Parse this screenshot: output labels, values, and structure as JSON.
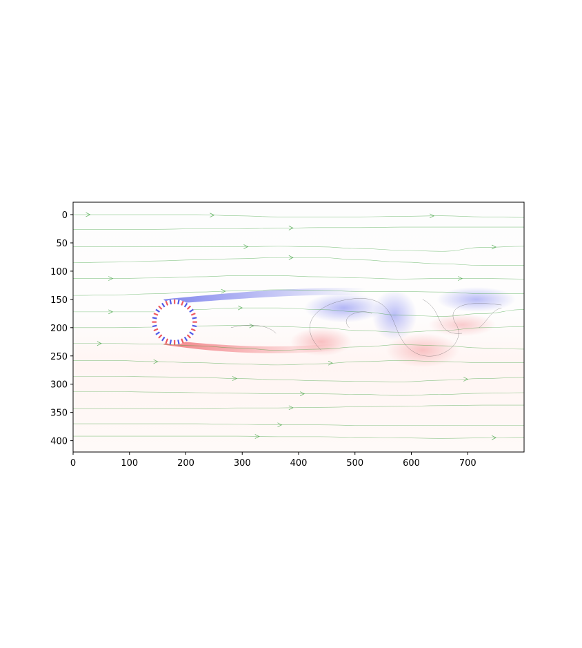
{
  "chart_data": {
    "type": "heatmap",
    "title": "",
    "xlabel": "",
    "ylabel": "",
    "xlim": [
      0,
      800
    ],
    "ylim": [
      420,
      -22
    ],
    "y_axis_inverted": true,
    "x_ticks": [
      0,
      100,
      200,
      300,
      400,
      500,
      600,
      700
    ],
    "y_ticks": [
      0,
      50,
      100,
      150,
      200,
      250,
      300,
      350,
      400
    ],
    "grid": false,
    "colormap": {
      "positive": "#e8202a",
      "negative": "#1a24e0",
      "zero": "#ffffff"
    },
    "obstacle": {
      "shape": "circle",
      "cx": 180,
      "cy": 190,
      "r": 40
    },
    "streamline_color": "#2e9a2e",
    "streamlines": [
      {
        "y": [
          0,
          0,
          0,
          0,
          2,
          4,
          4,
          4,
          3,
          2,
          4,
          5
        ],
        "arrows": [
          30,
          250,
          640
        ]
      },
      {
        "y": [
          26,
          26,
          26,
          25,
          25,
          24,
          23,
          23,
          22,
          22,
          22,
          22
        ],
        "arrows": [
          390
        ]
      },
      {
        "y": [
          57,
          57,
          57,
          57,
          57,
          56,
          57,
          60,
          63,
          65,
          58,
          56
        ],
        "arrows": [
          310,
          750
        ]
      },
      {
        "y": [
          85,
          84,
          82,
          80,
          78,
          76,
          76,
          80,
          84,
          87,
          90,
          90
        ],
        "arrows": [
          390
        ]
      },
      {
        "y": [
          113,
          113,
          112,
          110,
          108,
          108,
          110,
          112,
          114,
          113,
          113,
          114
        ],
        "arrows": [
          70,
          690
        ]
      },
      {
        "y": [
          143,
          142,
          140,
          137,
          135,
          133,
          134,
          136,
          136,
          137,
          140,
          140
        ],
        "arrows": [
          270
        ]
      },
      {
        "y": [
          172,
          172,
          172,
          168,
          165,
          165,
          168,
          172,
          178,
          180,
          175,
          168
        ],
        "arrows": [
          70,
          300
        ]
      },
      {
        "y": [
          200,
          200,
          199,
          197,
          196,
          198,
          200,
          205,
          208,
          205,
          200,
          198
        ],
        "arrows": [
          320
        ]
      },
      {
        "y": [
          228,
          228,
          229,
          232,
          236,
          240,
          238,
          234,
          230,
          232,
          236,
          238
        ],
        "arrows": [
          50
        ]
      },
      {
        "y": [
          258,
          258,
          260,
          262,
          264,
          266,
          264,
          260,
          258,
          260,
          262,
          262
        ],
        "arrows": [
          150,
          460
        ]
      },
      {
        "y": [
          286,
          286,
          287,
          288,
          290,
          292,
          294,
          295,
          296,
          293,
          290,
          288
        ],
        "arrows": [
          290,
          700
        ]
      },
      {
        "y": [
          313,
          313,
          314,
          315,
          316,
          317,
          317,
          318,
          320,
          318,
          316,
          315
        ],
        "arrows": [
          410
        ]
      },
      {
        "y": [
          343,
          343,
          343,
          343,
          342,
          342,
          341,
          340,
          339,
          338,
          337,
          337
        ],
        "arrows": [
          390
        ]
      },
      {
        "y": [
          370,
          370,
          370,
          370,
          371,
          372,
          372,
          373,
          373,
          373,
          373,
          373
        ],
        "arrows": [
          370
        ]
      },
      {
        "y": [
          392,
          392,
          392,
          392,
          392,
          393,
          393,
          394,
          395,
          396,
          395,
          394
        ],
        "arrows": [
          330,
          750
        ]
      }
    ],
    "vortices": [
      {
        "cx": 480,
        "cy": 165,
        "rx": 70,
        "ry": 26,
        "sign": -1,
        "strength": 0.35
      },
      {
        "cx": 570,
        "cy": 178,
        "rx": 40,
        "ry": 45,
        "sign": -1,
        "strength": 0.3
      },
      {
        "cx": 715,
        "cy": 150,
        "rx": 70,
        "ry": 22,
        "sign": -1,
        "strength": 0.3
      },
      {
        "cx": 440,
        "cy": 225,
        "rx": 55,
        "ry": 25,
        "sign": 1,
        "strength": 0.3
      },
      {
        "cx": 620,
        "cy": 240,
        "rx": 65,
        "ry": 30,
        "sign": 1,
        "strength": 0.28
      },
      {
        "cx": 690,
        "cy": 195,
        "rx": 60,
        "ry": 20,
        "sign": 1,
        "strength": 0.25
      }
    ]
  }
}
